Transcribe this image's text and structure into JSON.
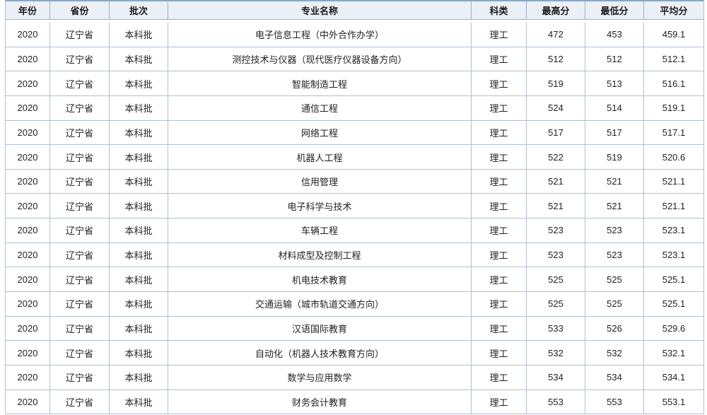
{
  "table": {
    "headers": [
      "年份",
      "省份",
      "批次",
      "专业名称",
      "科类",
      "最高分",
      "最低分",
      "平均分"
    ],
    "rows": [
      [
        "2020",
        "辽宁省",
        "本科批",
        "电子信息工程（中外合作办学）",
        "理工",
        "472",
        "453",
        "459.1"
      ],
      [
        "2020",
        "辽宁省",
        "本科批",
        "测控技术与仪器（现代医疗仪器设备方向）",
        "理工",
        "512",
        "512",
        "512.1"
      ],
      [
        "2020",
        "辽宁省",
        "本科批",
        "智能制造工程",
        "理工",
        "519",
        "513",
        "516.1"
      ],
      [
        "2020",
        "辽宁省",
        "本科批",
        "通信工程",
        "理工",
        "524",
        "514",
        "519.1"
      ],
      [
        "2020",
        "辽宁省",
        "本科批",
        "网络工程",
        "理工",
        "517",
        "517",
        "517.1"
      ],
      [
        "2020",
        "辽宁省",
        "本科批",
        "机器人工程",
        "理工",
        "522",
        "519",
        "520.6"
      ],
      [
        "2020",
        "辽宁省",
        "本科批",
        "信用管理",
        "理工",
        "521",
        "521",
        "521.1"
      ],
      [
        "2020",
        "辽宁省",
        "本科批",
        "电子科学与技术",
        "理工",
        "521",
        "521",
        "521.1"
      ],
      [
        "2020",
        "辽宁省",
        "本科批",
        "车辆工程",
        "理工",
        "523",
        "523",
        "523.1"
      ],
      [
        "2020",
        "辽宁省",
        "本科批",
        "材料成型及控制工程",
        "理工",
        "523",
        "523",
        "523.1"
      ],
      [
        "2020",
        "辽宁省",
        "本科批",
        "机电技术教育",
        "理工",
        "525",
        "525",
        "525.1"
      ],
      [
        "2020",
        "辽宁省",
        "本科批",
        "交通运输（城市轨道交通方向）",
        "理工",
        "525",
        "525",
        "525.1"
      ],
      [
        "2020",
        "辽宁省",
        "本科批",
        "汉语国际教育",
        "理工",
        "533",
        "526",
        "529.6"
      ],
      [
        "2020",
        "辽宁省",
        "本科批",
        "自动化（机器人技术教育方向）",
        "理工",
        "532",
        "532",
        "532.1"
      ],
      [
        "2020",
        "辽宁省",
        "本科批",
        "数学与应用数学",
        "理工",
        "534",
        "534",
        "534.1"
      ],
      [
        "2020",
        "辽宁省",
        "本科批",
        "财务会计教育",
        "理工",
        "553",
        "553",
        "553.1"
      ]
    ]
  },
  "colors": {
    "border": "#b0c0d2",
    "border_dark": "#9cb2c9",
    "top_border": "#8aa6c2",
    "header_bg": "#eaf0f6",
    "text": "#222222",
    "background": "#ffffff"
  }
}
